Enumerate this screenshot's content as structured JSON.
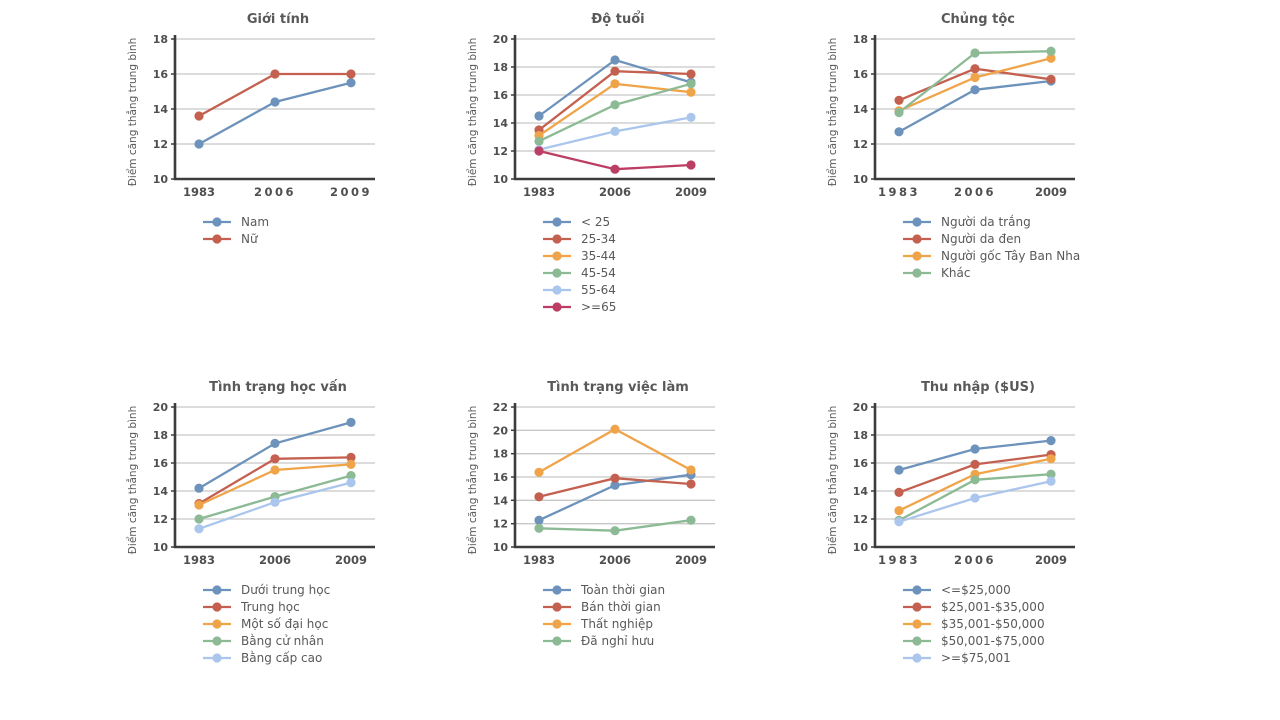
{
  "figure": {
    "background": "#ffffff",
    "axis_color": "#3c3c3c",
    "grid_color": "#c8c8c8",
    "text_color": "#595959"
  },
  "chart_data": [
    {
      "type": "line",
      "title": "Giới tính",
      "ylabel": "Điểm căng thẳng trung bình",
      "categories": [
        "1983",
        "2006",
        "2009"
      ],
      "ylim": [
        10,
        18
      ],
      "yticks": [
        10,
        12,
        14,
        16,
        18
      ],
      "grid": true,
      "legend_position": "bottom-left",
      "spaced_xticks": [
        1,
        2
      ],
      "series": [
        {
          "name": "Nam",
          "color": "#6d92bb",
          "values": [
            12.0,
            14.4,
            15.5
          ]
        },
        {
          "name": "Nữ",
          "color": "#c4604f",
          "values": [
            13.6,
            16.0,
            16.0
          ]
        }
      ]
    },
    {
      "type": "line",
      "title": "Độ tuổi",
      "ylabel": "Điểm căng thẳng trung bình",
      "categories": [
        "1983",
        "2006",
        "2009"
      ],
      "ylim": [
        10,
        20
      ],
      "yticks": [
        10,
        12,
        14,
        16,
        18,
        20
      ],
      "grid": true,
      "legend_position": "bottom-left",
      "spaced_xticks": [],
      "series": [
        {
          "name": "< 25",
          "color": "#6d92bb",
          "values": [
            14.5,
            18.5,
            16.9
          ]
        },
        {
          "name": "25-34",
          "color": "#c4604f",
          "values": [
            13.5,
            17.7,
            17.5
          ]
        },
        {
          "name": "35-44",
          "color": "#f0a44a",
          "values": [
            13.1,
            16.8,
            16.2
          ]
        },
        {
          "name": "45-54",
          "color": "#8cba94",
          "values": [
            12.7,
            15.3,
            16.8
          ]
        },
        {
          "name": "55-64",
          "color": "#abc6ec",
          "values": [
            12.1,
            13.4,
            14.4
          ]
        },
        {
          "name": ">=65",
          "color": "#bd3e64",
          "values": [
            12.0,
            10.7,
            11.0
          ]
        }
      ]
    },
    {
      "type": "line",
      "title": "Chủng tộc",
      "ylabel": "Điểm căng thẳng trung bình",
      "categories": [
        "1983",
        "2006",
        "2009"
      ],
      "ylim": [
        10,
        18
      ],
      "yticks": [
        10,
        12,
        14,
        16,
        18
      ],
      "grid": true,
      "legend_position": "bottom-left",
      "spaced_xticks": [
        0,
        1
      ],
      "series": [
        {
          "name": "Người da trắng",
          "color": "#6d92bb",
          "values": [
            12.7,
            15.1,
            15.6
          ]
        },
        {
          "name": "Người da đen",
          "color": "#c4604f",
          "values": [
            14.5,
            16.3,
            15.7
          ]
        },
        {
          "name": "Người gốc Tây Ban Nha",
          "color": "#f0a44a",
          "values": [
            13.9,
            15.8,
            16.9
          ]
        },
        {
          "name": "Khác",
          "color": "#8cba94",
          "values": [
            13.8,
            17.2,
            17.3
          ]
        }
      ]
    },
    {
      "type": "line",
      "title": "Tình trạng học vấn",
      "ylabel": "Điểm căng thẳng trung bình",
      "categories": [
        "1983",
        "2006",
        "2009"
      ],
      "ylim": [
        10,
        20
      ],
      "yticks": [
        10,
        12,
        14,
        16,
        18,
        20
      ],
      "grid": true,
      "legend_position": "bottom-left",
      "spaced_xticks": [],
      "series": [
        {
          "name": "Dưới trung học",
          "color": "#6d92bb",
          "values": [
            14.2,
            17.4,
            18.9
          ]
        },
        {
          "name": "Trung học",
          "color": "#c4604f",
          "values": [
            13.1,
            16.3,
            16.4
          ]
        },
        {
          "name": "Một số đại học",
          "color": "#f0a44a",
          "values": [
            13.0,
            15.5,
            15.9
          ]
        },
        {
          "name": "Bằng cử nhân",
          "color": "#8cba94",
          "values": [
            12.0,
            13.6,
            15.1
          ]
        },
        {
          "name": "Bằng cấp cao",
          "color": "#abc6ec",
          "values": [
            11.3,
            13.2,
            14.6
          ]
        }
      ]
    },
    {
      "type": "line",
      "title": "Tình trạng việc làm",
      "ylabel": "Điểm căng thẳng trung bình",
      "categories": [
        "1983",
        "2006",
        "2009"
      ],
      "ylim": [
        10,
        22
      ],
      "yticks": [
        10,
        12,
        14,
        16,
        18,
        20,
        22
      ],
      "grid": true,
      "legend_position": "bottom-left",
      "spaced_xticks": [],
      "series": [
        {
          "name": "Toàn thời gian",
          "color": "#6d92bb",
          "values": [
            12.3,
            15.3,
            16.2
          ]
        },
        {
          "name": "Bán thời gian",
          "color": "#c4604f",
          "values": [
            14.3,
            15.9,
            15.4
          ]
        },
        {
          "name": "Thất nghiệp",
          "color": "#f0a44a",
          "values": [
            16.4,
            20.1,
            16.6
          ]
        },
        {
          "name": "Đã nghỉ hưu",
          "color": "#8cba94",
          "values": [
            11.6,
            11.4,
            12.3
          ]
        }
      ]
    },
    {
      "type": "line",
      "title": "Thu nhập ($US)",
      "ylabel": "Điểm căng thẳng trung bình",
      "categories": [
        "1983",
        "2006",
        "2009"
      ],
      "ylim": [
        10,
        20
      ],
      "yticks": [
        10,
        12,
        14,
        16,
        18,
        20
      ],
      "grid": true,
      "legend_position": "bottom-left",
      "spaced_xticks": [
        0,
        1
      ],
      "series": [
        {
          "name": "<=$25,000",
          "color": "#6d92bb",
          "values": [
            15.5,
            17.0,
            17.6
          ]
        },
        {
          "name": "$25,001-$35,000",
          "color": "#c4604f",
          "values": [
            13.9,
            15.9,
            16.6
          ]
        },
        {
          "name": "$35,001-$50,000",
          "color": "#f0a44a",
          "values": [
            12.6,
            15.2,
            16.3
          ]
        },
        {
          "name": "$50,001-$75,000",
          "color": "#8cba94",
          "values": [
            11.9,
            14.8,
            15.2
          ]
        },
        {
          "name": ">=$75,001",
          "color": "#abc6ec",
          "values": [
            11.8,
            13.5,
            14.7
          ]
        }
      ]
    }
  ]
}
